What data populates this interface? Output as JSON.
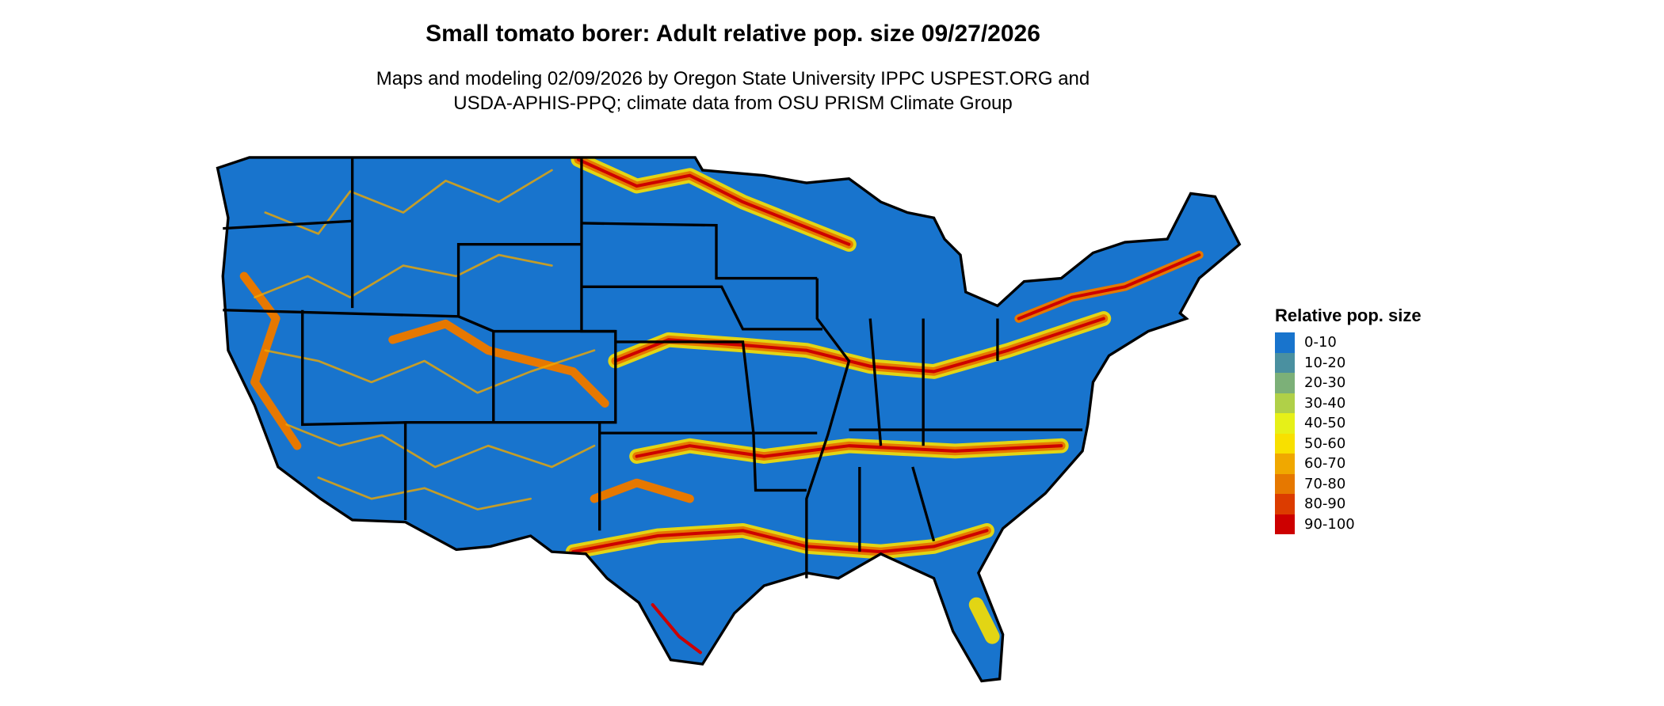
{
  "title": "Small tomato borer: Adult relative pop. size 09/27/2026",
  "subtitle_line1": "Maps and modeling 02/09/2026 by Oregon State University IPPC USPEST.ORG and",
  "subtitle_line2": "USDA-APHIS-PPQ; climate data from OSU PRISM Climate Group",
  "legend": {
    "title": "Relative pop. size",
    "items": [
      {
        "label": "0-10",
        "color": "#1874CD"
      },
      {
        "label": "10-20",
        "color": "#4A90A0"
      },
      {
        "label": "20-30",
        "color": "#7CB078"
      },
      {
        "label": "30-40",
        "color": "#B0D048"
      },
      {
        "label": "40-50",
        "color": "#E6F018"
      },
      {
        "label": "50-60",
        "color": "#F8E000"
      },
      {
        "label": "60-70",
        "color": "#F0A800"
      },
      {
        "label": "70-80",
        "color": "#E67800"
      },
      {
        "label": "80-90",
        "color": "#DC3C00"
      },
      {
        "label": "90-100",
        "color": "#CD0000"
      }
    ]
  }
}
